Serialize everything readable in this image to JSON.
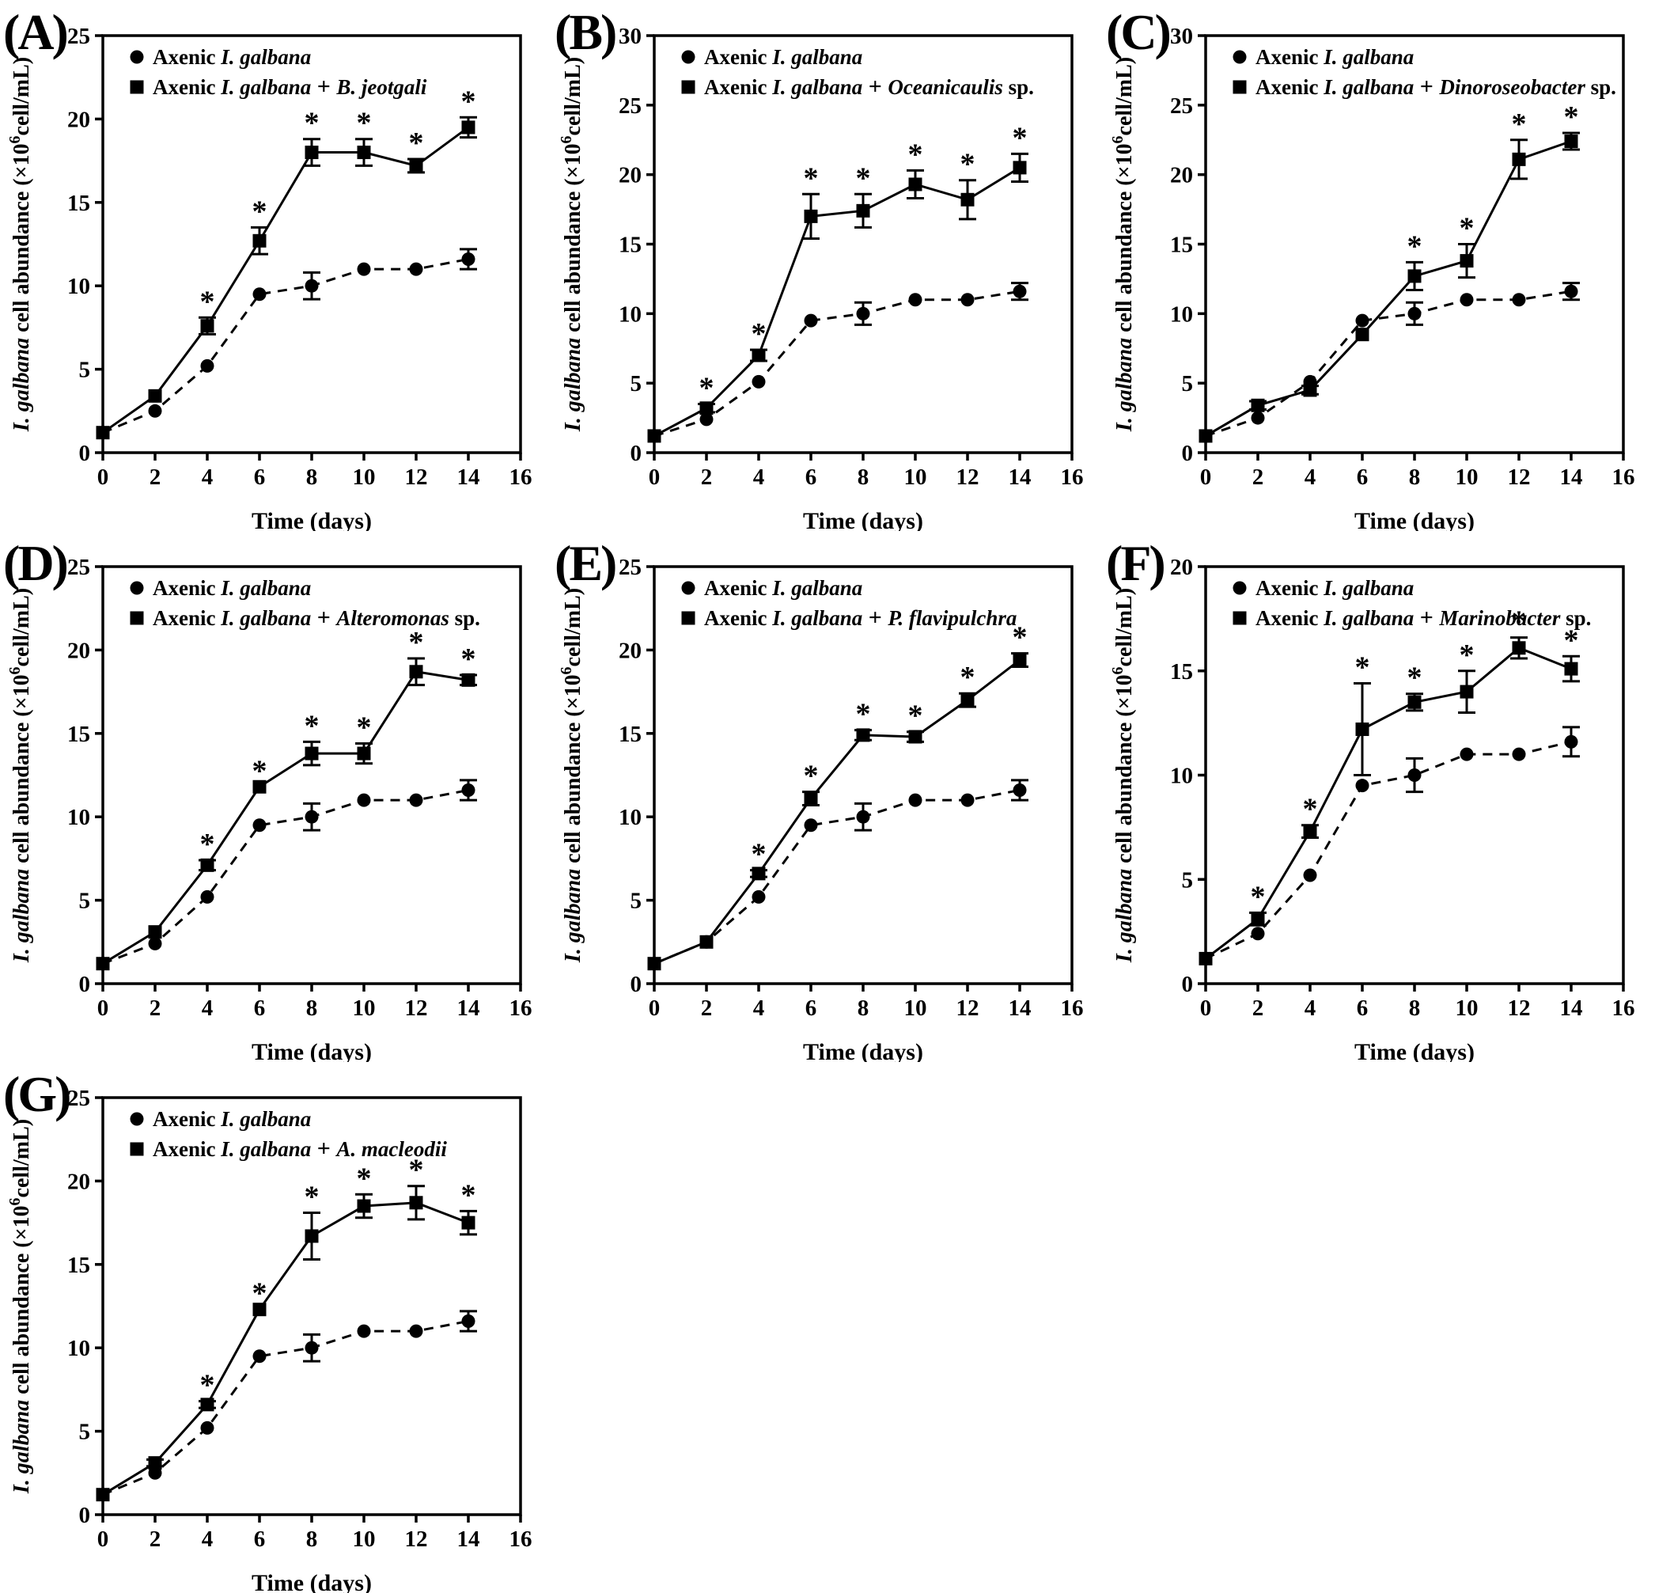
{
  "figure": {
    "xlabel": "Time (days)",
    "ylabel": {
      "it": "I. galbana",
      "mid": " cell abundance (×10",
      "sup": "6",
      "end": "cell/mL)"
    },
    "x_ticks": [
      0,
      2,
      4,
      6,
      8,
      10,
      12,
      14,
      16
    ],
    "days": [
      0,
      2,
      4,
      6,
      8,
      10,
      12,
      14
    ],
    "legend": {
      "axenic_pre": "Axenic ",
      "axenic_it": "I. galbana",
      "plus": "+"
    },
    "colors": {
      "fg": "#000000",
      "bg": "#ffffff"
    },
    "significance_marker": "*"
  },
  "chart_data": [
    {
      "letter": "(A)",
      "type": "line",
      "ymax": 25,
      "yticks": [
        0,
        5,
        10,
        15,
        20,
        25
      ],
      "x": [
        0,
        2,
        4,
        6,
        8,
        10,
        12,
        14
      ],
      "legend2_it": "B. jeotgali",
      "legend2_suffix": "",
      "series": [
        {
          "name": "Axenic I. galbana",
          "y": [
            1.2,
            2.5,
            5.2,
            9.5,
            10.0,
            11.0,
            11.0,
            11.6
          ],
          "err": [
            0,
            0,
            0,
            0,
            0.8,
            0,
            0,
            0.6
          ]
        },
        {
          "name": "Axenic I. galbana + B. jeotgali",
          "y": [
            1.2,
            3.4,
            7.6,
            12.7,
            18.0,
            18.0,
            17.2,
            19.5
          ],
          "err": [
            0,
            0,
            0.5,
            0.8,
            0.8,
            0.8,
            0.4,
            0.6
          ]
        }
      ],
      "star_days": [
        4,
        6,
        8,
        10,
        12,
        14
      ]
    },
    {
      "letter": "(B)",
      "type": "line",
      "ymax": 30,
      "yticks": [
        0,
        5,
        10,
        15,
        20,
        25,
        30
      ],
      "x": [
        0,
        2,
        4,
        6,
        8,
        10,
        12,
        14
      ],
      "legend2_it": "Oceanicaulis",
      "legend2_suffix": " sp.",
      "series": [
        {
          "name": "Axenic I. galbana",
          "y": [
            1.2,
            2.4,
            5.1,
            9.5,
            10.0,
            11.0,
            11.0,
            11.6
          ],
          "err": [
            0,
            0,
            0,
            0,
            0.8,
            0,
            0,
            0.6
          ]
        },
        {
          "name": "Axenic I. galbana + Oceanicaulis sp.",
          "y": [
            1.2,
            3.2,
            7.0,
            17.0,
            17.4,
            19.3,
            18.2,
            20.5
          ],
          "err": [
            0,
            0.3,
            0.4,
            1.6,
            1.2,
            1.0,
            1.4,
            1.0
          ]
        }
      ],
      "star_days": [
        2,
        4,
        6,
        8,
        10,
        12,
        14
      ]
    },
    {
      "letter": "(C)",
      "type": "line",
      "ymax": 30,
      "yticks": [
        0,
        5,
        10,
        15,
        20,
        25,
        30
      ],
      "x": [
        0,
        2,
        4,
        6,
        8,
        10,
        12,
        14
      ],
      "legend2_it": "Dinoroseobacter",
      "legend2_suffix": " sp.",
      "series": [
        {
          "name": "Axenic I. galbana",
          "y": [
            1.2,
            2.5,
            5.1,
            9.5,
            10.0,
            11.0,
            11.0,
            11.6
          ],
          "err": [
            0,
            0,
            0,
            0,
            0.8,
            0,
            0,
            0.6
          ]
        },
        {
          "name": "Axenic I. galbana + Dinoroseobacter sp.",
          "y": [
            1.2,
            3.4,
            4.5,
            8.5,
            12.7,
            13.8,
            21.1,
            22.4
          ],
          "err": [
            0,
            0.3,
            0.3,
            0,
            1.0,
            1.2,
            1.4,
            0.6
          ]
        }
      ],
      "star_days": [
        8,
        10,
        12,
        14
      ]
    },
    {
      "letter": "(D)",
      "type": "line",
      "ymax": 25,
      "yticks": [
        0,
        5,
        10,
        15,
        20,
        25
      ],
      "x": [
        0,
        2,
        4,
        6,
        8,
        10,
        12,
        14
      ],
      "legend2_it": "Alteromonas",
      "legend2_suffix": " sp.",
      "series": [
        {
          "name": "Axenic I. galbana",
          "y": [
            1.2,
            2.4,
            5.2,
            9.5,
            10.0,
            11.0,
            11.0,
            11.6
          ],
          "err": [
            0,
            0,
            0,
            0,
            0.8,
            0,
            0,
            0.6
          ]
        },
        {
          "name": "Axenic I. galbana + Alteromonas sp.",
          "y": [
            1.2,
            3.1,
            7.1,
            11.8,
            13.8,
            13.8,
            18.7,
            18.2
          ],
          "err": [
            0,
            0,
            0.3,
            0,
            0.7,
            0.6,
            0.8,
            0.3
          ]
        }
      ],
      "star_days": [
        4,
        6,
        8,
        10,
        12,
        14
      ]
    },
    {
      "letter": "(E)",
      "type": "line",
      "ymax": 25,
      "yticks": [
        0,
        5,
        10,
        15,
        20,
        25
      ],
      "x": [
        0,
        2,
        4,
        6,
        8,
        10,
        12,
        14
      ],
      "legend2_it": "P. flavipulchra",
      "legend2_suffix": "",
      "series": [
        {
          "name": "Axenic I. galbana",
          "y": [
            1.2,
            2.5,
            5.2,
            9.5,
            10.0,
            11.0,
            11.0,
            11.6
          ],
          "err": [
            0,
            0,
            0,
            0,
            0.8,
            0,
            0,
            0.6
          ]
        },
        {
          "name": "Axenic I. galbana + P. flavipulchra",
          "y": [
            1.2,
            2.5,
            6.6,
            11.1,
            14.9,
            14.8,
            17.0,
            19.4
          ],
          "err": [
            0,
            0,
            0.2,
            0.4,
            0.3,
            0.3,
            0.4,
            0.4
          ]
        }
      ],
      "star_days": [
        4,
        6,
        8,
        10,
        12,
        14
      ]
    },
    {
      "letter": "(F)",
      "type": "line",
      "ymax": 20,
      "yticks": [
        0,
        5,
        10,
        15,
        20
      ],
      "x": [
        0,
        2,
        4,
        6,
        8,
        10,
        12,
        14
      ],
      "legend2_it": "Marinobacter",
      "legend2_suffix": " sp.",
      "series": [
        {
          "name": "Axenic I. galbana",
          "y": [
            1.2,
            2.4,
            5.2,
            9.5,
            10.0,
            11.0,
            11.0,
            11.6
          ],
          "err": [
            0,
            0,
            0,
            0,
            0.8,
            0,
            0,
            0.7
          ]
        },
        {
          "name": "Axenic I. galbana + Marinobacter sp.",
          "y": [
            1.2,
            3.1,
            7.3,
            12.2,
            13.5,
            14.0,
            16.1,
            15.1
          ],
          "err": [
            0,
            0.3,
            0.3,
            2.2,
            0.4,
            1.0,
            0.5,
            0.6
          ]
        }
      ],
      "star_days": [
        2,
        4,
        6,
        8,
        10,
        12,
        14
      ]
    },
    {
      "letter": "(G)",
      "type": "line",
      "ymax": 25,
      "yticks": [
        0,
        5,
        10,
        15,
        20,
        25
      ],
      "x": [
        0,
        2,
        4,
        6,
        8,
        10,
        12,
        14
      ],
      "legend2_it": "A. macleodii",
      "legend2_suffix": "",
      "series": [
        {
          "name": "Axenic I. galbana",
          "y": [
            1.2,
            2.5,
            5.2,
            9.5,
            10.0,
            11.0,
            11.0,
            11.6
          ],
          "err": [
            0,
            0,
            0,
            0,
            0.8,
            0,
            0,
            0.6
          ]
        },
        {
          "name": "Axenic I. galbana + A. macleodii",
          "y": [
            1.2,
            3.1,
            6.6,
            12.3,
            16.7,
            18.5,
            18.7,
            17.5
          ],
          "err": [
            0,
            0.2,
            0.2,
            0,
            1.4,
            0.7,
            1.0,
            0.7
          ]
        }
      ],
      "star_days": [
        4,
        6,
        8,
        10,
        12,
        14
      ]
    }
  ]
}
